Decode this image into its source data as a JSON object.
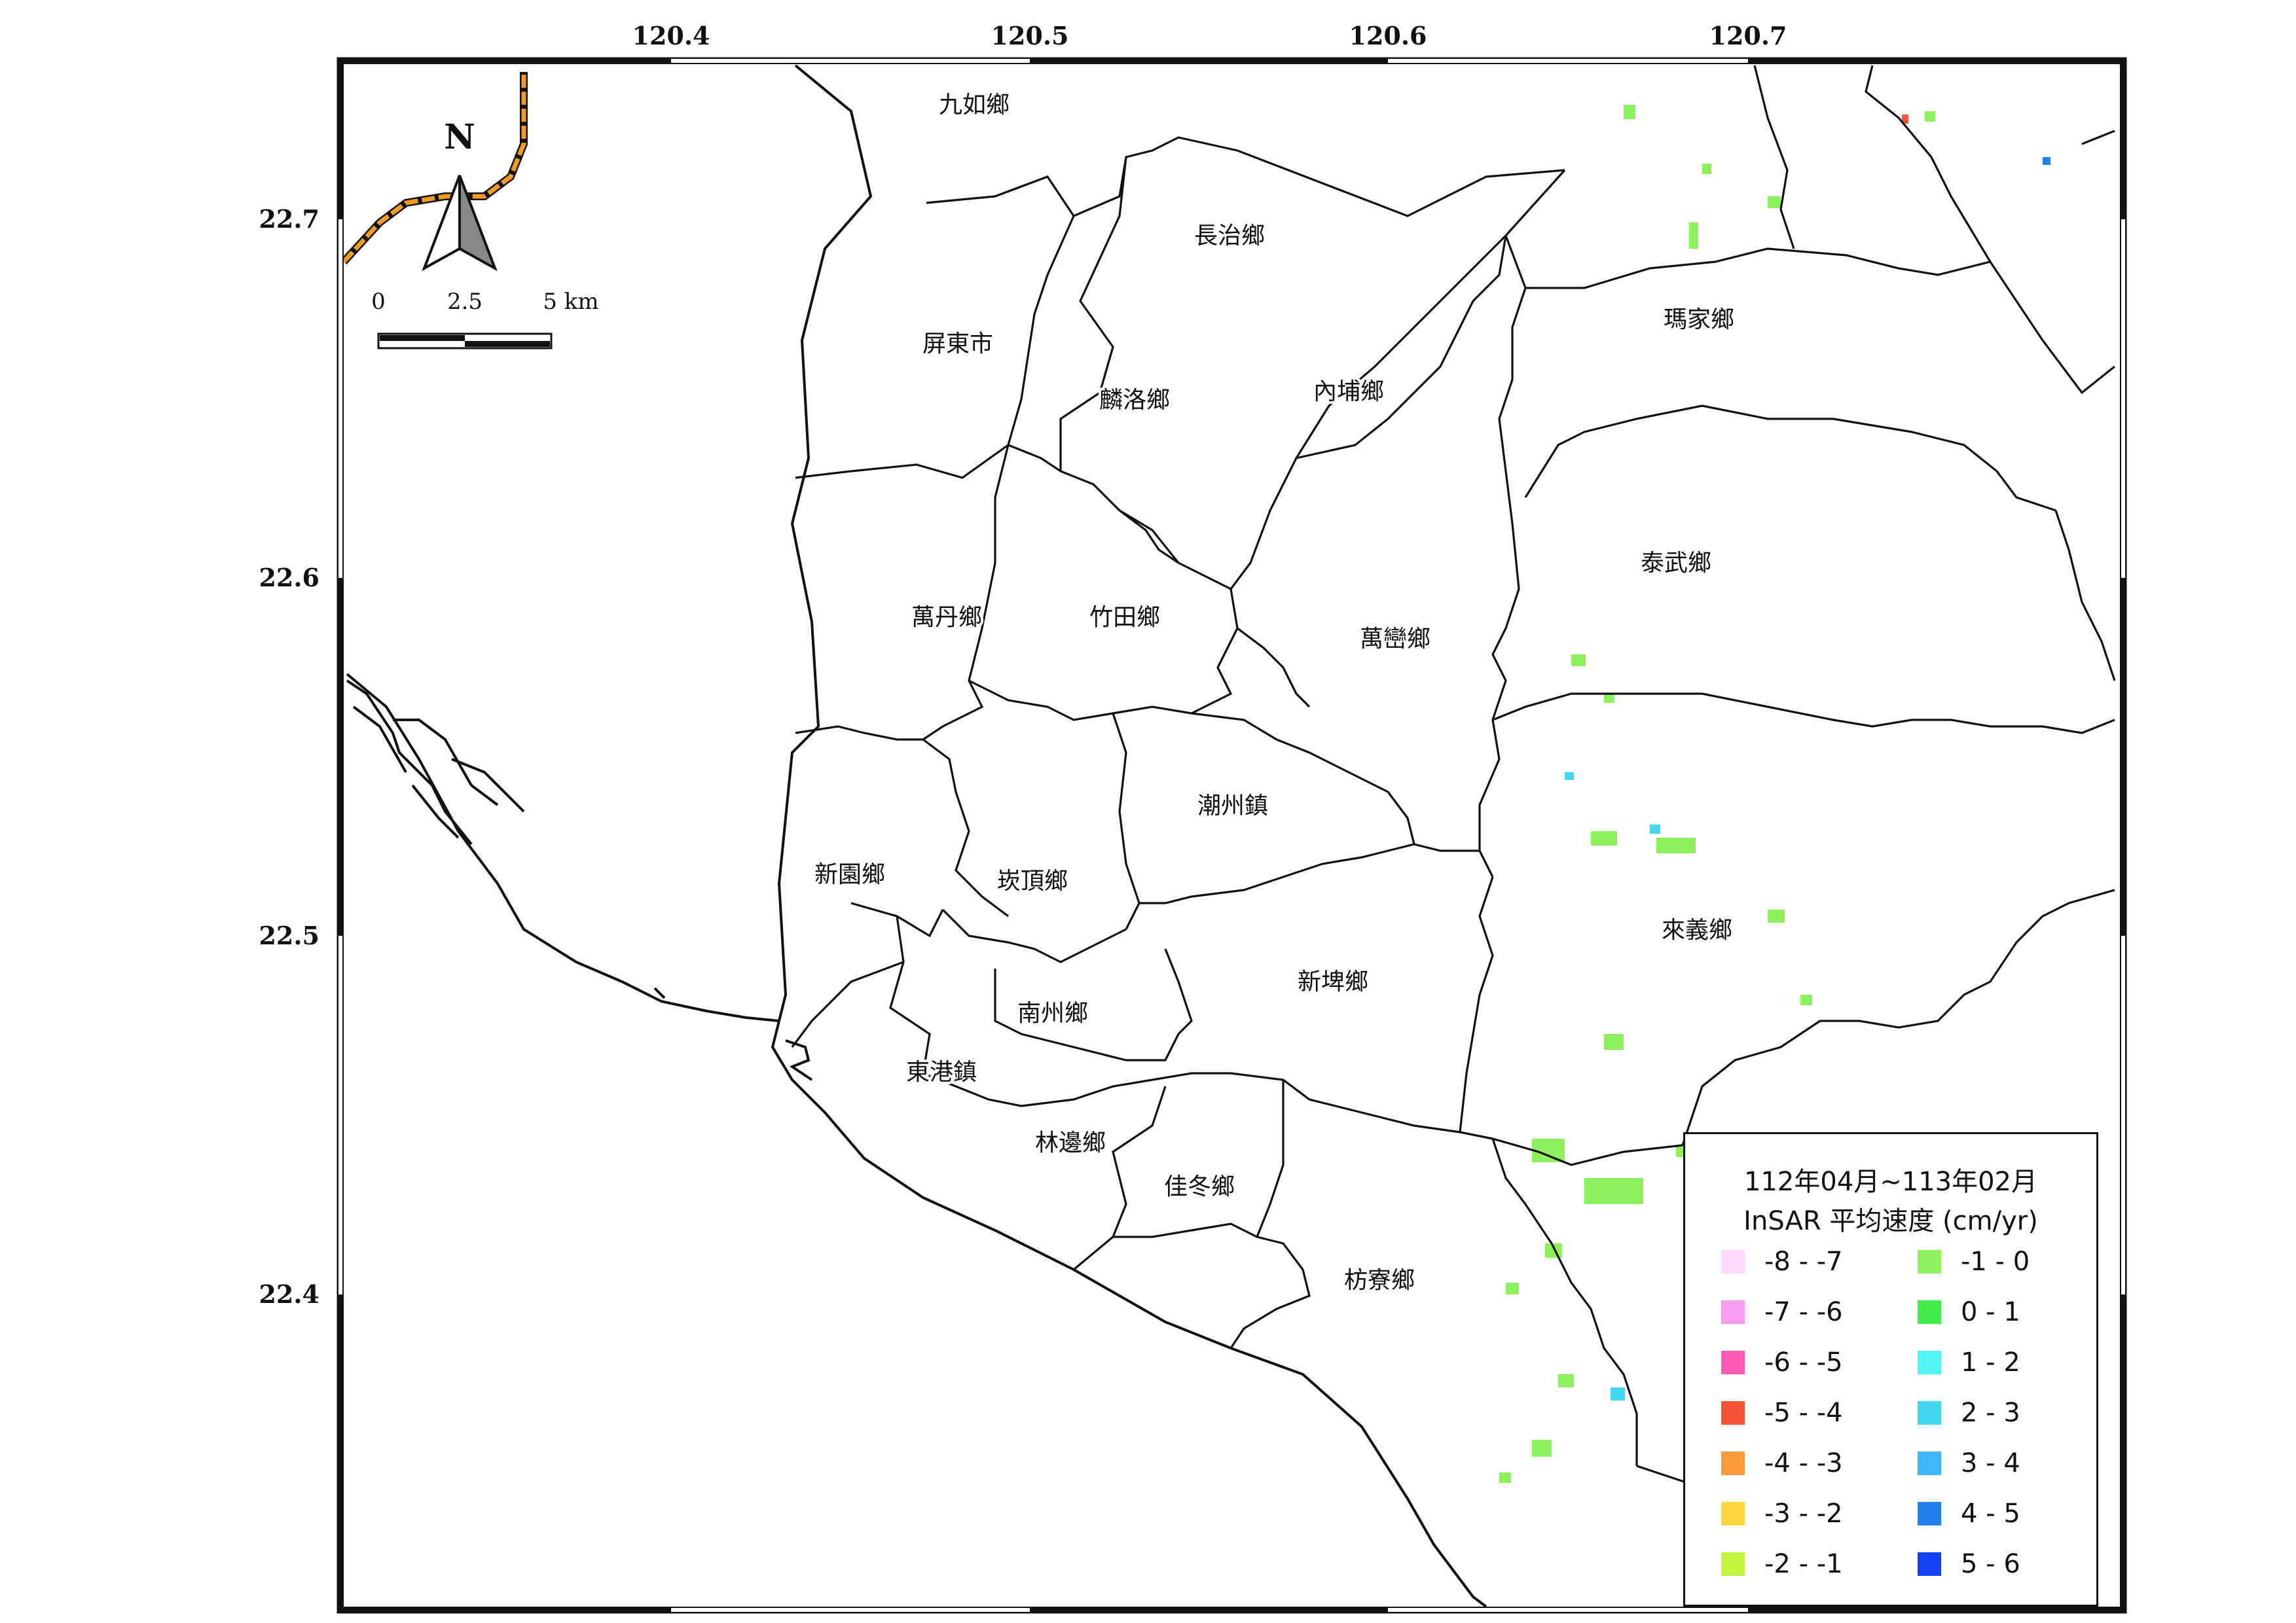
{
  "map": {
    "x_ticks": [
      "120.4",
      "120.5",
      "120.6",
      "120.7"
    ],
    "y_ticks": [
      "22.7",
      "22.6",
      "22.5",
      "22.4"
    ],
    "townships": [
      {
        "name": "九如鄉"
      },
      {
        "name": "長治鄉"
      },
      {
        "name": "屏東市"
      },
      {
        "name": "麟洛鄉"
      },
      {
        "name": "內埔鄉"
      },
      {
        "name": "瑪家鄉"
      },
      {
        "name": "泰武鄉"
      },
      {
        "name": "萬丹鄉"
      },
      {
        "name": "竹田鄉"
      },
      {
        "name": "萬巒鄉"
      },
      {
        "name": "潮州鎮"
      },
      {
        "name": "新園鄉"
      },
      {
        "name": "崁頂鄉"
      },
      {
        "name": "來義鄉"
      },
      {
        "name": "新埤鄉"
      },
      {
        "name": "南州鄉"
      },
      {
        "name": "東港鎮"
      },
      {
        "name": "林邊鄉"
      },
      {
        "name": "佳冬鄉"
      },
      {
        "name": "枋寮鄉"
      }
    ]
  },
  "north_arrow": {
    "label": "N"
  },
  "scale_bar": {
    "labels": [
      "0",
      "2.5",
      "5 km"
    ]
  },
  "legend": {
    "title_line1": "112年04月~113年02月",
    "title_line2": "InSAR 平均速度 (cm/yr)",
    "classes": [
      {
        "label": "-8 - -7",
        "color": "#ffd7fb"
      },
      {
        "label": "-7 - -6",
        "color": "#f79cf0"
      },
      {
        "label": "-6 - -5",
        "color": "#ff5ab4"
      },
      {
        "label": "-5 - -4",
        "color": "#f5523a"
      },
      {
        "label": "-4 - -3",
        "color": "#ff9a3c"
      },
      {
        "label": "-3 - -2",
        "color": "#fdd63c"
      },
      {
        "label": "-2 - -1",
        "color": "#c3f53c"
      },
      {
        "label": "-1 - 0",
        "color": "#8ef05a"
      },
      {
        "label": "0 - 1",
        "color": "#44ec4a"
      },
      {
        "label": "1 - 2",
        "color": "#52f5f2"
      },
      {
        "label": "2 - 3",
        "color": "#44d8f0"
      },
      {
        "label": "3 - 4",
        "color": "#3fb6f5"
      },
      {
        "label": "4 - 5",
        "color": "#2280f0"
      },
      {
        "label": "5 - 6",
        "color": "#1242f0"
      }
    ]
  }
}
